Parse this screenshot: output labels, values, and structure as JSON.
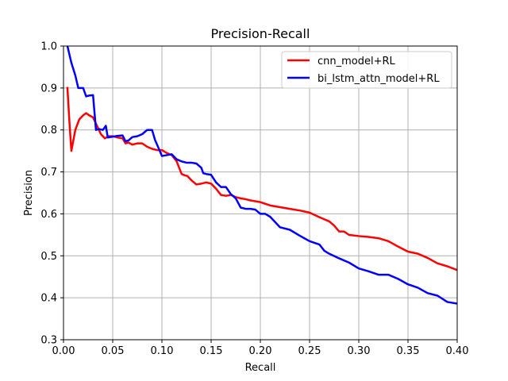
{
  "chart_data": {
    "type": "line",
    "title": "Precision-Recall",
    "xlabel": "Recall",
    "ylabel": "Precision",
    "xlim": [
      0.0,
      0.4
    ],
    "ylim": [
      0.3,
      1.0
    ],
    "xticks": [
      0.0,
      0.05,
      0.1,
      0.15,
      0.2,
      0.25,
      0.3,
      0.35,
      0.4
    ],
    "yticks": [
      0.3,
      0.4,
      0.5,
      0.6,
      0.7,
      0.8,
      0.9,
      1.0
    ],
    "xtick_labels": [
      "0.00",
      "0.05",
      "0.10",
      "0.15",
      "0.20",
      "0.25",
      "0.30",
      "0.35",
      "0.40"
    ],
    "ytick_labels": [
      "0.3",
      "0.4",
      "0.5",
      "0.6",
      "0.7",
      "0.8",
      "0.9",
      "1.0"
    ],
    "grid": true,
    "legend_position": "top-right",
    "series": [
      {
        "name": "cnn_model+RL",
        "color": "#ff0000",
        "x": [
          0.004,
          0.006,
          0.008,
          0.012,
          0.016,
          0.02,
          0.023,
          0.026,
          0.03,
          0.034,
          0.038,
          0.042,
          0.046,
          0.05,
          0.055,
          0.06,
          0.063,
          0.066,
          0.07,
          0.075,
          0.08,
          0.085,
          0.09,
          0.095,
          0.1,
          0.105,
          0.11,
          0.115,
          0.12,
          0.123,
          0.126,
          0.13,
          0.135,
          0.14,
          0.145,
          0.15,
          0.155,
          0.16,
          0.165,
          0.17,
          0.175,
          0.18,
          0.185,
          0.19,
          0.2,
          0.21,
          0.22,
          0.23,
          0.24,
          0.25,
          0.26,
          0.27,
          0.275,
          0.28,
          0.285,
          0.29,
          0.3,
          0.31,
          0.32,
          0.33,
          0.34,
          0.35,
          0.36,
          0.37,
          0.38,
          0.39,
          0.4
        ],
        "y": [
          0.9,
          0.82,
          0.75,
          0.8,
          0.825,
          0.835,
          0.84,
          0.835,
          0.83,
          0.81,
          0.79,
          0.78,
          0.785,
          0.785,
          0.782,
          0.78,
          0.768,
          0.77,
          0.765,
          0.768,
          0.768,
          0.76,
          0.755,
          0.752,
          0.752,
          0.745,
          0.74,
          0.725,
          0.695,
          0.692,
          0.69,
          0.68,
          0.67,
          0.672,
          0.675,
          0.672,
          0.66,
          0.645,
          0.643,
          0.645,
          0.64,
          0.637,
          0.635,
          0.632,
          0.628,
          0.62,
          0.616,
          0.612,
          0.608,
          0.603,
          0.592,
          0.582,
          0.572,
          0.558,
          0.558,
          0.55,
          0.547,
          0.545,
          0.542,
          0.535,
          0.522,
          0.51,
          0.505,
          0.495,
          0.482,
          0.475,
          0.466
        ]
      },
      {
        "name": "bi_lstm_attn_model+RL",
        "color": "#0000ff",
        "x": [
          0.004,
          0.008,
          0.012,
          0.015,
          0.02,
          0.023,
          0.026,
          0.03,
          0.033,
          0.036,
          0.04,
          0.043,
          0.045,
          0.05,
          0.055,
          0.06,
          0.063,
          0.066,
          0.07,
          0.075,
          0.08,
          0.085,
          0.09,
          0.093,
          0.096,
          0.1,
          0.105,
          0.11,
          0.115,
          0.12,
          0.125,
          0.13,
          0.135,
          0.14,
          0.142,
          0.145,
          0.15,
          0.155,
          0.16,
          0.165,
          0.17,
          0.175,
          0.18,
          0.185,
          0.19,
          0.195,
          0.2,
          0.205,
          0.21,
          0.22,
          0.23,
          0.24,
          0.25,
          0.26,
          0.265,
          0.27,
          0.28,
          0.29,
          0.3,
          0.31,
          0.32,
          0.33,
          0.34,
          0.35,
          0.36,
          0.37,
          0.38,
          0.39,
          0.4
        ],
        "y": [
          1.0,
          0.96,
          0.93,
          0.9,
          0.9,
          0.88,
          0.882,
          0.883,
          0.8,
          0.802,
          0.8,
          0.81,
          0.782,
          0.784,
          0.786,
          0.787,
          0.773,
          0.775,
          0.783,
          0.785,
          0.79,
          0.8,
          0.8,
          0.776,
          0.76,
          0.738,
          0.74,
          0.742,
          0.73,
          0.725,
          0.722,
          0.722,
          0.72,
          0.71,
          0.697,
          0.695,
          0.693,
          0.675,
          0.664,
          0.664,
          0.647,
          0.637,
          0.615,
          0.612,
          0.612,
          0.61,
          0.6,
          0.6,
          0.593,
          0.568,
          0.562,
          0.548,
          0.535,
          0.527,
          0.512,
          0.505,
          0.494,
          0.484,
          0.47,
          0.463,
          0.455,
          0.455,
          0.445,
          0.432,
          0.424,
          0.411,
          0.405,
          0.39,
          0.386
        ]
      }
    ]
  }
}
